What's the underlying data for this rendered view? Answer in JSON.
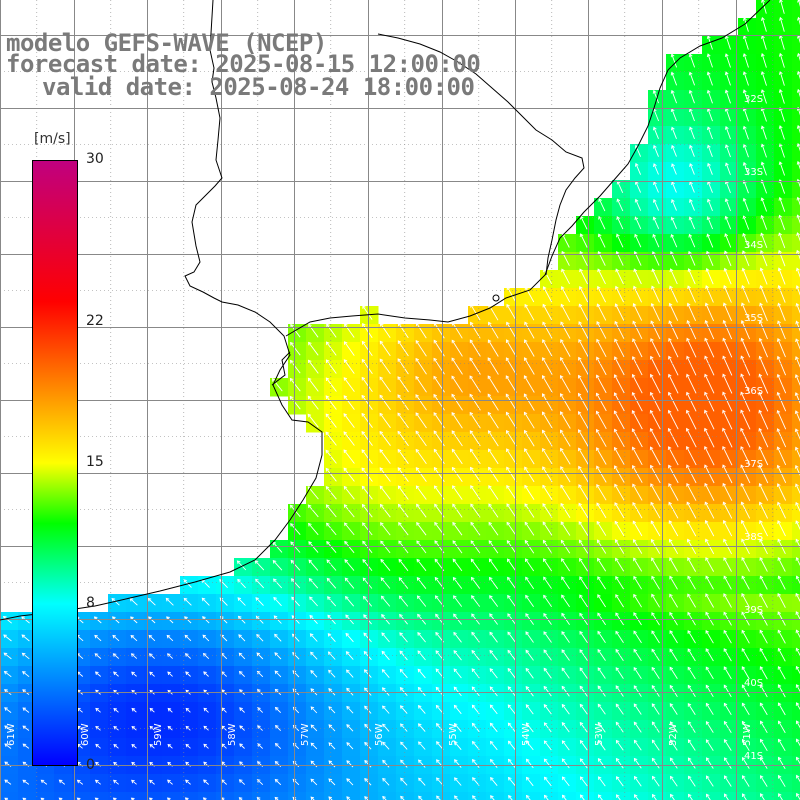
{
  "title": {
    "line1": "modelo GEFS-WAVE (NCEP)",
    "line2": "forecast date: 2025-08-15 12:00:00",
    "line3": "valid date: 2025-08-24 18:00:00"
  },
  "colorbar": {
    "unit": "[m/s]",
    "min": 0,
    "max": 30,
    "ticks": [
      {
        "value": 30,
        "label": "30"
      },
      {
        "value": 22,
        "label": "22"
      },
      {
        "value": 15,
        "label": "15"
      },
      {
        "value": 8,
        "label": "8"
      },
      {
        "value": 0,
        "label": "0"
      }
    ],
    "stops": [
      {
        "value": 0,
        "color": "#0000ff"
      },
      {
        "value": 8,
        "color": "#00ffff"
      },
      {
        "value": 12,
        "color": "#00ff00"
      },
      {
        "value": 15,
        "color": "#ffff00"
      },
      {
        "value": 19,
        "color": "#ff8000"
      },
      {
        "value": 23,
        "color": "#ff0000"
      },
      {
        "value": 30,
        "color": "#c0007f"
      }
    ]
  },
  "latitude_labels": [
    "32S",
    "33S",
    "34S",
    "35S",
    "36S",
    "37S",
    "38S",
    "39S",
    "40S",
    "41S"
  ],
  "longitude_labels": [
    "61W",
    "60W",
    "59W",
    "58W",
    "57W",
    "56W",
    "55W",
    "54W",
    "53W",
    "52W",
    "51W"
  ],
  "colors": {
    "coastline": "#000000",
    "grid": "#888888",
    "arrows": "#ffffff",
    "title": "#7a7a7a"
  }
}
